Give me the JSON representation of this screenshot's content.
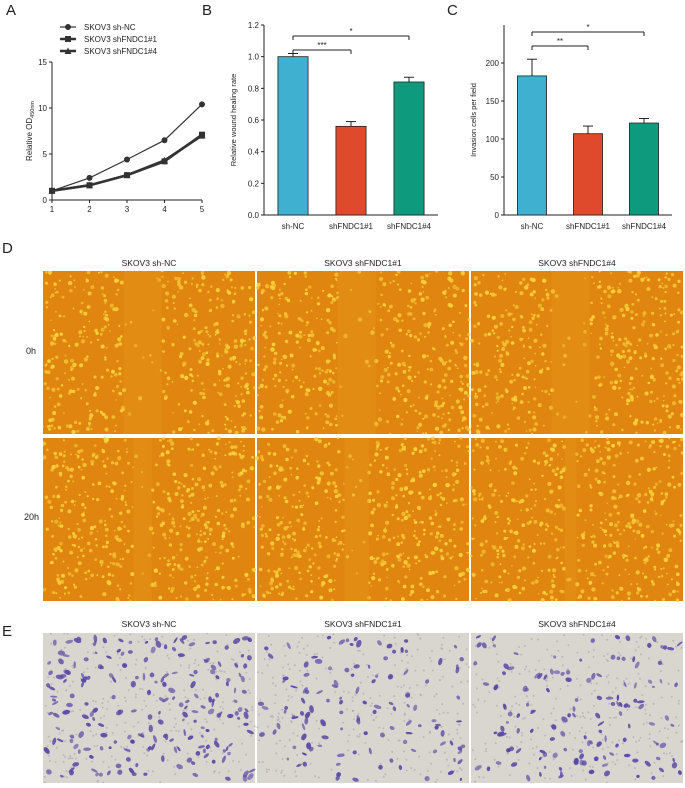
{
  "panels": {
    "A": "A",
    "B": "B",
    "C": "C",
    "D": "D",
    "E": "E"
  },
  "colors": {
    "shNC": "#3fb0cf",
    "shFNDC1_1": "#e04a2c",
    "shFNDC1_4": "#0e9a7d",
    "line": "#333333",
    "woundBg": "#e0850f",
    "woundCell": "#f6d23a",
    "transwellBg": "#d9d6cf",
    "transwellCell": "#5a4aa6"
  },
  "chart_data": [
    {
      "type": "line",
      "panel": "A",
      "title": "",
      "xlabel": "",
      "ylabel_main": "Relative OD",
      "ylabel_sub": "450nm",
      "x": [
        1,
        2,
        3,
        4,
        5
      ],
      "xlim": [
        1,
        5
      ],
      "ylim": [
        0,
        15
      ],
      "yticks": [
        0,
        5,
        10,
        15
      ],
      "series": [
        {
          "name": "SKOV3 sh-NC",
          "marker": "circle",
          "values": [
            1.0,
            2.4,
            4.4,
            6.5,
            10.4
          ]
        },
        {
          "name": "SKOV3 shFNDC1#1",
          "marker": "square",
          "values": [
            1.0,
            1.6,
            2.7,
            4.2,
            7.1
          ]
        },
        {
          "name": "SKOV3 shFNDC1#4",
          "marker": "triangle",
          "values": [
            1.0,
            1.6,
            2.7,
            4.3,
            7.0
          ]
        }
      ]
    },
    {
      "type": "bar",
      "panel": "B",
      "ylabel": "Relative wound healing rate",
      "categories": [
        "sh-NC",
        "shFNDC1#1",
        "shFNDC1#4"
      ],
      "values": [
        1.0,
        0.56,
        0.84
      ],
      "errors": [
        0.02,
        0.03,
        0.03
      ],
      "ylim": [
        0,
        1.2
      ],
      "yticks": [
        "0.0",
        "0.2",
        "0.4",
        "0.6",
        "0.8",
        "1.0",
        "1.2"
      ],
      "significance": [
        {
          "from": 0,
          "to": 1,
          "label": "***"
        },
        {
          "from": 0,
          "to": 2,
          "label": "*"
        }
      ]
    },
    {
      "type": "bar",
      "panel": "C",
      "ylabel": "Invasion cells per field",
      "categories": [
        "sh-NC",
        "shFNDC1#1",
        "shFNDC1#4"
      ],
      "values": [
        183,
        107,
        121
      ],
      "errors": [
        22,
        10,
        6
      ],
      "ylim": [
        0,
        250
      ],
      "yticks": [
        "0",
        "50",
        "100",
        "150",
        "200"
      ],
      "significance": [
        {
          "from": 0,
          "to": 1,
          "label": "**"
        },
        {
          "from": 0,
          "to": 2,
          "label": "*"
        }
      ]
    }
  ],
  "wound": {
    "titles": [
      "SKOV3 sh-NC",
      "SKOV3 shFNDC1#1",
      "SKOV3 shFNDC1#4"
    ],
    "rows": [
      "0h",
      "20h"
    ],
    "gaps": [
      [
        1.0,
        1.0,
        1.0
      ],
      [
        0.42,
        0.6,
        0.22
      ]
    ]
  },
  "transwell": {
    "titles": [
      "SKOV3 sh-NC",
      "SKOV3 shFNDC1#1",
      "SKOV3 shFNDC1#4"
    ],
    "density": [
      1.0,
      0.58,
      0.66
    ]
  }
}
